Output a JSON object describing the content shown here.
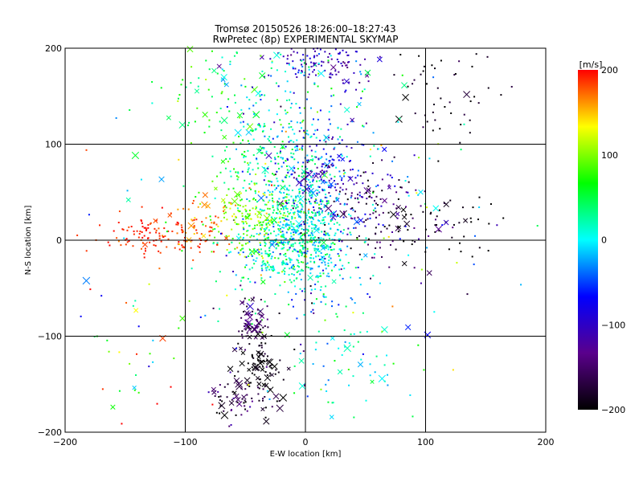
{
  "chart_data": {
    "type": "scatter",
    "title": "Tromsø 20150526 18:26:00–18:27:43",
    "subtitle": "RwPretec (8p) EXPERIMENTAL SKYMAP",
    "xlabel": "E-W location [km]",
    "ylabel": "N-S location [km]",
    "xlim": [
      -200,
      200
    ],
    "ylim": [
      -200,
      200
    ],
    "x_ticks": [
      -200,
      -100,
      0,
      100,
      200
    ],
    "y_ticks": [
      -200,
      -100,
      0,
      100,
      200
    ],
    "grid": true,
    "colorbar": {
      "label": "[m/s]",
      "range": [
        -200,
        200
      ],
      "ticks": [
        -200,
        -100,
        0,
        100,
        200
      ],
      "colors": [
        "#000000",
        "#5a008c",
        "#0000ff",
        "#00ffff",
        "#00ff00",
        "#ffff00",
        "#ff0000"
      ],
      "placement": "right"
    },
    "marker_styles": [
      "dot",
      "cross"
    ],
    "clusters": [
      {
        "x": 15,
        "y": 185,
        "sx": 22,
        "sy": 12,
        "n": 110,
        "v": -110,
        "vs": 20,
        "cross": 0.08
      },
      {
        "x": -10,
        "y": 170,
        "sx": 30,
        "sy": 20,
        "n": 70,
        "v": 10,
        "vs": 40,
        "cross": 0.05
      },
      {
        "x": -80,
        "y": 150,
        "sx": 25,
        "sy": 35,
        "n": 70,
        "v": 50,
        "vs": 30,
        "cross": 0.2
      },
      {
        "x": 110,
        "y": 150,
        "sx": 25,
        "sy": 35,
        "n": 50,
        "v": -190,
        "vs": 15,
        "cross": 0.1
      },
      {
        "x": -5,
        "y": 80,
        "sx": 25,
        "sy": 35,
        "n": 260,
        "v": -10,
        "vs": 50,
        "cross": 0.05
      },
      {
        "x": 20,
        "y": 70,
        "sx": 20,
        "sy": 25,
        "n": 140,
        "v": -100,
        "vs": 30,
        "cross": 0.1
      },
      {
        "x": -40,
        "y": 90,
        "sx": 20,
        "sy": 25,
        "n": 100,
        "v": 40,
        "vs": 30,
        "cross": 0.05
      },
      {
        "x": -5,
        "y": 15,
        "sx": 20,
        "sy": 25,
        "n": 480,
        "v": 10,
        "vs": 30,
        "cross": 0.03
      },
      {
        "x": -45,
        "y": 20,
        "sx": 18,
        "sy": 20,
        "n": 180,
        "v": 100,
        "vs": 20,
        "cross": 0.05
      },
      {
        "x": -125,
        "y": 5,
        "sx": 22,
        "sy": 10,
        "n": 120,
        "v": 190,
        "vs": 10,
        "cross": 0.03
      },
      {
        "x": -85,
        "y": 15,
        "sx": 12,
        "sy": 15,
        "n": 50,
        "v": 170,
        "vs": 20,
        "cross": 0.1
      },
      {
        "x": 60,
        "y": 30,
        "sx": 25,
        "sy": 25,
        "n": 120,
        "v": -160,
        "vs": 30,
        "cross": 0.15
      },
      {
        "x": 110,
        "y": 20,
        "sx": 30,
        "sy": 20,
        "n": 50,
        "v": -200,
        "vs": 10,
        "cross": 0.15
      },
      {
        "x": -20,
        "y": -20,
        "sx": 22,
        "sy": 18,
        "n": 200,
        "v": 15,
        "vs": 30,
        "cross": 0.04
      },
      {
        "x": 15,
        "y": -40,
        "sx": 20,
        "sy": 35,
        "n": 90,
        "v": -10,
        "vs": 50,
        "cross": 0.06
      },
      {
        "x": -45,
        "y": -85,
        "sx": 6,
        "sy": 14,
        "n": 70,
        "v": -160,
        "vs": 20,
        "cross": 0.3
      },
      {
        "x": -38,
        "y": -130,
        "sx": 10,
        "sy": 15,
        "n": 80,
        "v": -195,
        "vs": 10,
        "cross": 0.25
      },
      {
        "x": -55,
        "y": -165,
        "sx": 18,
        "sy": 12,
        "n": 70,
        "v": -170,
        "vs": 25,
        "cross": 0.2
      },
      {
        "x": 20,
        "y": -140,
        "sx": 30,
        "sy": 30,
        "n": 50,
        "v": 10,
        "vs": 30,
        "cross": 0.2
      },
      {
        "x": -150,
        "y": -120,
        "sx": 30,
        "sy": 40,
        "n": 30,
        "v": 80,
        "vs": 80,
        "cross": 0.3
      },
      {
        "x": 0,
        "y": 0,
        "sx": 90,
        "sy": 100,
        "n": 200,
        "v": 0,
        "vs": 100,
        "cross": 0.1
      }
    ]
  }
}
